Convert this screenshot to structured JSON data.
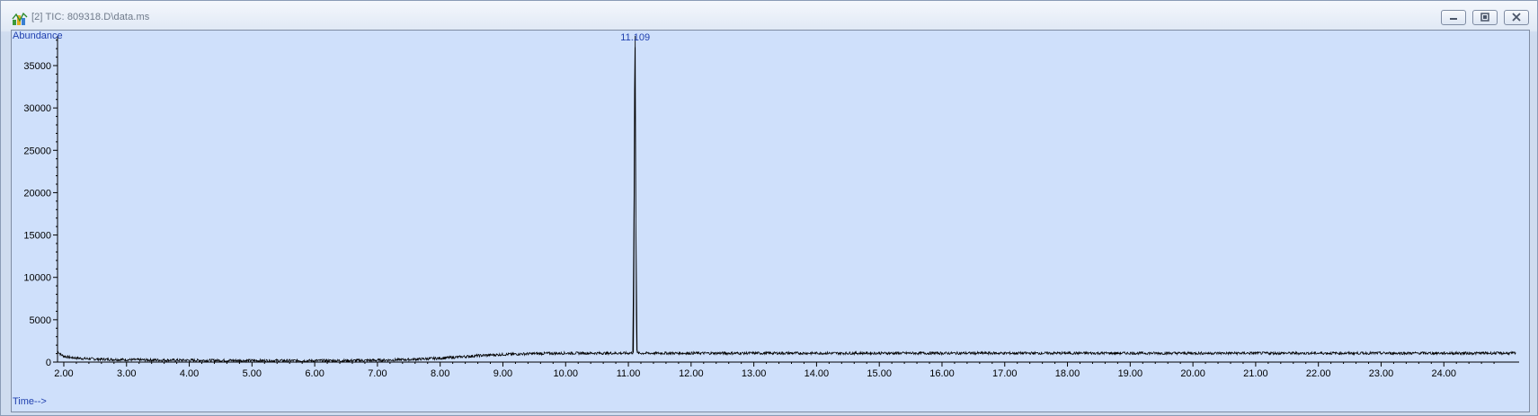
{
  "window": {
    "title": "[2] TIC: 809318.D\\data.ms",
    "icon": "chromatogram-app-icon",
    "controls": [
      "minimize-icon",
      "restore-icon",
      "close-icon"
    ]
  },
  "colors": {
    "plot_background": "#cfe0fb",
    "axis_label": "#1f3fae",
    "trace": "#000000"
  },
  "chart_data": {
    "type": "line",
    "title": "",
    "ylabel": "Abundance",
    "xlabel": "Time-->",
    "xlim": [
      1.9,
      25.2
    ],
    "ylim": [
      0,
      38500
    ],
    "x_ticks": [
      "2.00",
      "3.00",
      "4.00",
      "5.00",
      "6.00",
      "7.00",
      "8.00",
      "9.00",
      "10.00",
      "11.00",
      "12.00",
      "13.00",
      "14.00",
      "15.00",
      "16.00",
      "17.00",
      "18.00",
      "19.00",
      "20.00",
      "21.00",
      "22.00",
      "23.00",
      "24.00"
    ],
    "y_ticks": [
      "0",
      "5000",
      "10000",
      "15000",
      "20000",
      "25000",
      "30000",
      "35000"
    ],
    "peak_label": "11.109",
    "series": [
      {
        "x": [
          1.9,
          1.95,
          2.0,
          2.1,
          2.3,
          2.6,
          3.0,
          3.5,
          4.0,
          5.0,
          6.0,
          6.5,
          7.0,
          7.5,
          8.0,
          8.3,
          8.6,
          9.0,
          9.5,
          10.0,
          10.5,
          11.0,
          11.07,
          11.09,
          11.1,
          11.109,
          11.12,
          11.13,
          11.15,
          11.2,
          12.0,
          13.0,
          14.0,
          15.0,
          16.0,
          17.0,
          18.0,
          19.0,
          20.0,
          21.0,
          22.0,
          23.0,
          24.0,
          25.0,
          25.15
        ],
        "y": [
          1300,
          900,
          700,
          550,
          420,
          340,
          280,
          240,
          220,
          180,
          170,
          180,
          220,
          300,
          460,
          600,
          760,
          900,
          1000,
          1050,
          1050,
          1050,
          1100,
          18000,
          35000,
          38500,
          17000,
          1500,
          1050,
          1050,
          1050,
          1050,
          1050,
          1050,
          1050,
          1050,
          1050,
          1050,
          1050,
          1050,
          1050,
          1050,
          1050,
          1050,
          1050
        ]
      }
    ]
  }
}
